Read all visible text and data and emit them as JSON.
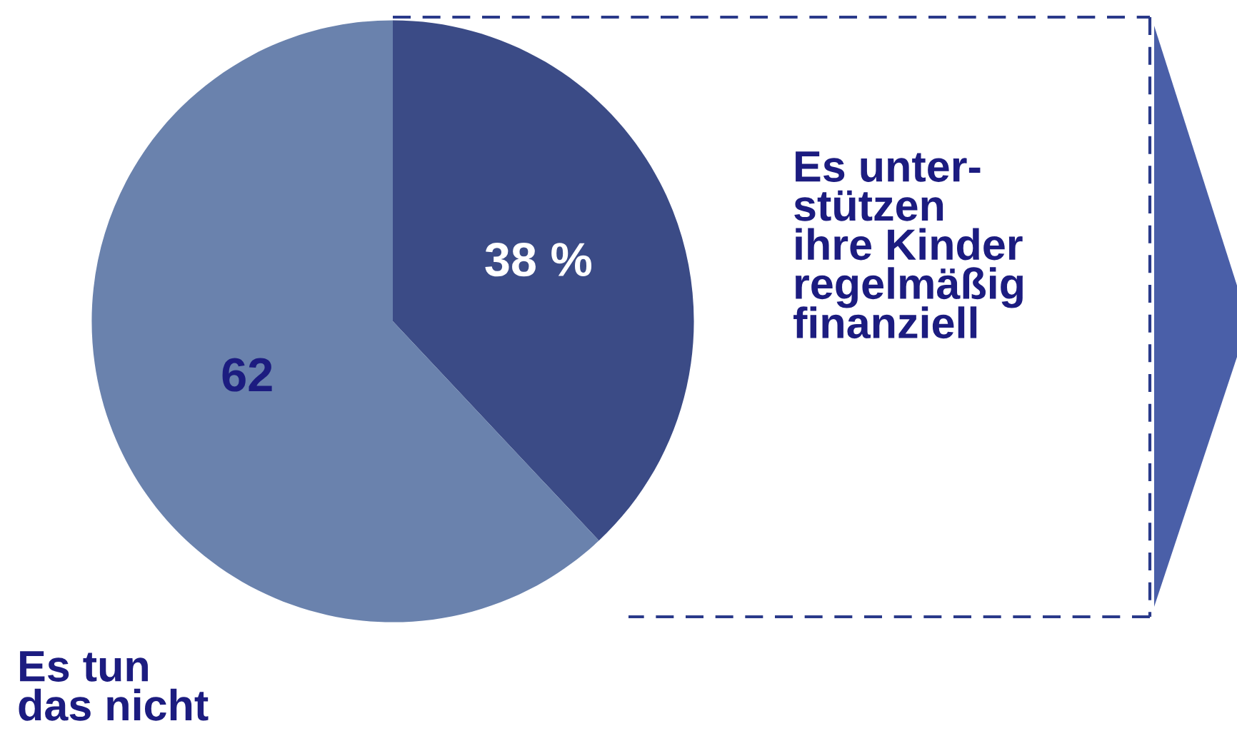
{
  "chart_data": {
    "type": "pie",
    "categories": [
      "Es unter-\nstützen\nihre Kinder\nregelmäßig\nfinanziell",
      "Es tun\ndas nicht"
    ],
    "values": [
      38,
      62
    ],
    "colors": [
      "#3b4b86",
      "#6a82ad"
    ],
    "value_labels": [
      "38 %",
      "62"
    ],
    "legend": false
  }
}
